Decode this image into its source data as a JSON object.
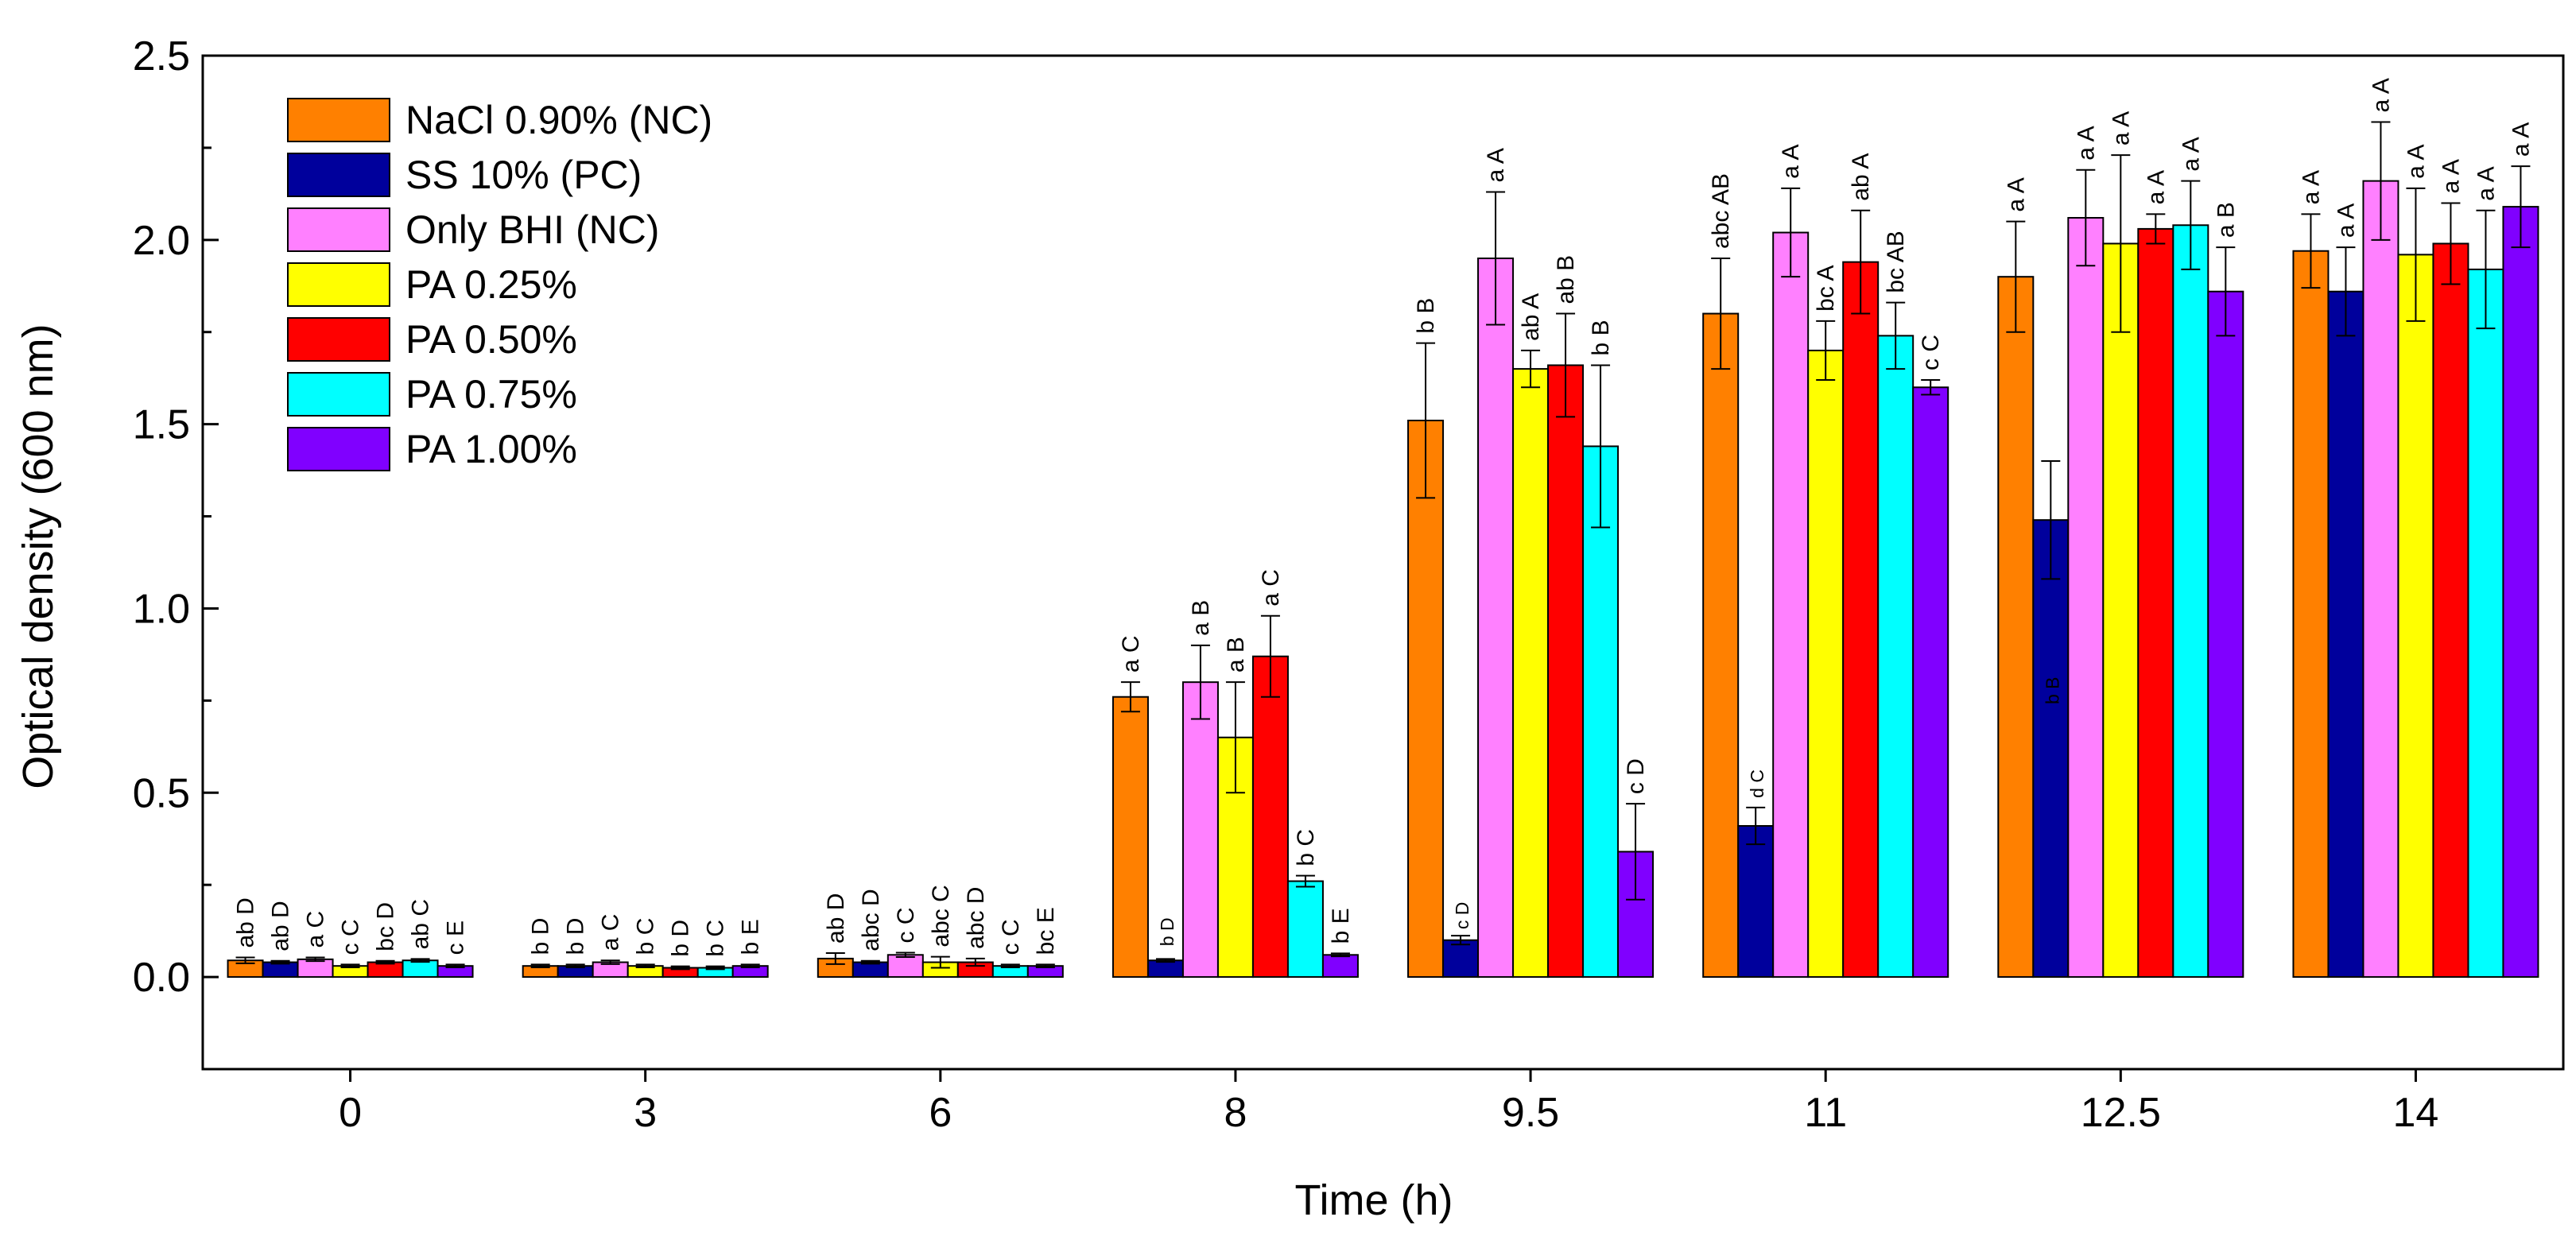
{
  "chart_data": {
    "type": "bar",
    "title": "",
    "xlabel": "Time (h)",
    "ylabel": "Optical density (600 nm)",
    "ylim": [
      -0.25,
      2.5
    ],
    "yticks": [
      "0.0",
      "0.5",
      "1.0",
      "1.5",
      "2.0",
      "2.5"
    ],
    "ytick_values": [
      0.0,
      0.5,
      1.0,
      1.5,
      2.0,
      2.5
    ],
    "categories": [
      "0",
      "3",
      "6",
      "8",
      "9.5",
      "11",
      "12.5",
      "14"
    ],
    "legend_position": "top-left",
    "series": [
      {
        "name": "NaCl 0.90% (NC)",
        "color": "#FF8000",
        "values": [
          0.045,
          0.03,
          0.05,
          0.76,
          1.51,
          1.8,
          1.9,
          1.97
        ],
        "errors": [
          0.008,
          0.004,
          0.015,
          0.04,
          0.21,
          0.15,
          0.15,
          0.1
        ],
        "labels": [
          "ab D",
          "b D",
          "ab D",
          "a C",
          "b B",
          "abc AB",
          "a A",
          "a A"
        ]
      },
      {
        "name": "SS 10% (PC)",
        "color": "#00009C",
        "values": [
          0.04,
          0.03,
          0.04,
          0.045,
          0.1,
          0.41,
          1.24,
          1.86
        ],
        "errors": [
          0.004,
          0.004,
          0.004,
          0.004,
          0.012,
          0.05,
          0.16,
          0.12
        ],
        "labels": [
          "ab D",
          "b D",
          "abc D",
          "b D",
          "c D",
          "d C",
          "b B",
          "a A"
        ]
      },
      {
        "name": "Only BHI (NC)",
        "color": "#FF80FF",
        "values": [
          0.048,
          0.04,
          0.06,
          0.8,
          1.95,
          2.02,
          2.06,
          2.16
        ],
        "errors": [
          0.005,
          0.005,
          0.006,
          0.1,
          0.18,
          0.12,
          0.13,
          0.16
        ],
        "labels": [
          "a C",
          "a C",
          "c C",
          "a B",
          "a A",
          "a A",
          "a A",
          "a A"
        ]
      },
      {
        "name": "PA 0.25%",
        "color": "#FFFF00",
        "values": [
          0.03,
          0.03,
          0.04,
          0.65,
          1.65,
          1.7,
          1.99,
          1.96
        ],
        "errors": [
          0.004,
          0.004,
          0.015,
          0.15,
          0.05,
          0.08,
          0.24,
          0.18
        ],
        "labels": [
          "c C",
          "b C",
          "abc C",
          "a B",
          "ab A",
          "bc A",
          "a A",
          "a A"
        ]
      },
      {
        "name": "PA 0.50%",
        "color": "#FF0000",
        "values": [
          0.04,
          0.025,
          0.04,
          0.87,
          1.66,
          1.94,
          2.03,
          1.99
        ],
        "errors": [
          0.004,
          0.004,
          0.01,
          0.11,
          0.14,
          0.14,
          0.04,
          0.11
        ],
        "labels": [
          "bc D",
          "b D",
          "abc D",
          "a C",
          "ab B",
          "ab A",
          "a A",
          "a A"
        ]
      },
      {
        "name": "PA 0.75%",
        "color": "#00FFFF",
        "values": [
          0.045,
          0.025,
          0.03,
          0.26,
          1.44,
          1.74,
          2.04,
          1.92
        ],
        "errors": [
          0.004,
          0.004,
          0.004,
          0.015,
          0.22,
          0.09,
          0.12,
          0.16
        ],
        "labels": [
          "ab C",
          "b C",
          "c C",
          "b C",
          "b B",
          "bc AB",
          "a A",
          "a A"
        ]
      },
      {
        "name": "PA 1.00%",
        "color": "#8000FF",
        "values": [
          0.03,
          0.03,
          0.03,
          0.06,
          0.34,
          1.6,
          1.86,
          2.09
        ],
        "errors": [
          0.004,
          0.004,
          0.004,
          0.004,
          0.13,
          0.02,
          0.12,
          0.11
        ],
        "labels": [
          "c E",
          "b E",
          "bc E",
          "b E",
          "c D",
          "c C",
          "a B",
          "a A"
        ]
      }
    ]
  }
}
